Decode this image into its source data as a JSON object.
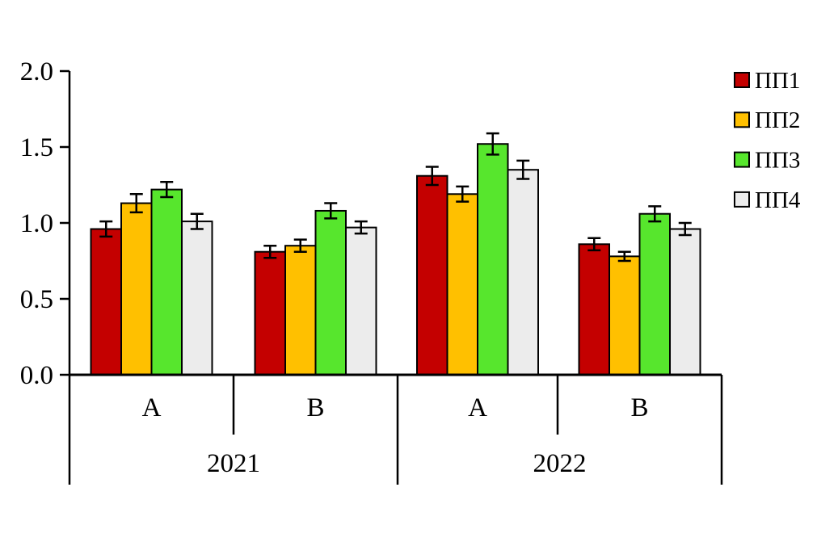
{
  "figure": {
    "background_color": "#ffffff",
    "axis_color": "#000000"
  },
  "chart_data": {
    "type": "bar",
    "title": "",
    "xlabel": "",
    "ylabel": "",
    "ylim": [
      0.0,
      2.0
    ],
    "grid": false,
    "legend_position": "right",
    "yticks": [
      0.0,
      0.5,
      1.0,
      1.5,
      2.0
    ],
    "ytick_labels": [
      "0.0",
      "0.5",
      "1.0",
      "1.5",
      "2.0"
    ],
    "group_labels_level1": [
      "A",
      "B",
      "A",
      "B"
    ],
    "group_labels_level2": [
      "2021",
      "2022"
    ],
    "groups": [
      "2021 A",
      "2021 B",
      "2022 A",
      "2022 B"
    ],
    "error_bars": true,
    "series": [
      {
        "name": "ПП1",
        "color": "#C40000",
        "values": [
          0.96,
          0.81,
          1.31,
          0.86
        ],
        "errors": [
          0.05,
          0.04,
          0.06,
          0.04
        ]
      },
      {
        "name": "ПП2",
        "color": "#FFC000",
        "values": [
          1.13,
          0.85,
          1.19,
          0.78
        ],
        "errors": [
          0.06,
          0.04,
          0.05,
          0.03
        ]
      },
      {
        "name": "ПП3",
        "color": "#57E62D",
        "values": [
          1.22,
          1.08,
          1.52,
          1.06
        ],
        "errors": [
          0.05,
          0.05,
          0.07,
          0.05
        ]
      },
      {
        "name": "ПП4",
        "color": "#ECECEC",
        "values": [
          1.01,
          0.97,
          1.35,
          0.96
        ],
        "errors": [
          0.05,
          0.04,
          0.06,
          0.04
        ]
      }
    ]
  }
}
